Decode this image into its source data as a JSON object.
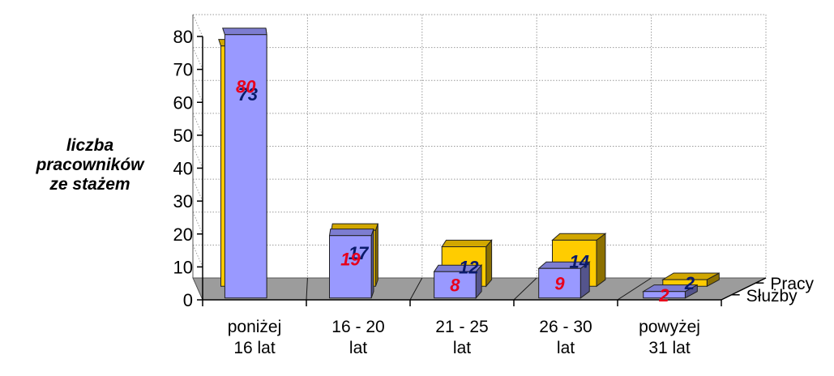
{
  "chart_data": {
    "type": "bar",
    "three_d": true,
    "ylabel_lines": [
      "liczba",
      "pracowników",
      "ze stażem"
    ],
    "ylim": [
      0,
      80
    ],
    "yticks": [
      0,
      10,
      20,
      30,
      40,
      50,
      60,
      70,
      80
    ],
    "categories": [
      [
        "poniżej",
        "16 lat"
      ],
      [
        "16 - 20",
        "lat"
      ],
      [
        "21 - 25",
        "lat"
      ],
      [
        "26 - 30",
        "lat"
      ],
      [
        "powyżej",
        "31 lat"
      ]
    ],
    "series": [
      {
        "name": "Służby",
        "values": [
          80,
          19,
          8,
          9,
          2
        ],
        "color": "#9999ff",
        "label_color": "#e8001c"
      },
      {
        "name": "Pracy",
        "values": [
          73,
          17,
          12,
          14,
          2
        ],
        "color": "#ffcc00",
        "label_color": "#0a1a6a"
      }
    ],
    "grid": true
  }
}
